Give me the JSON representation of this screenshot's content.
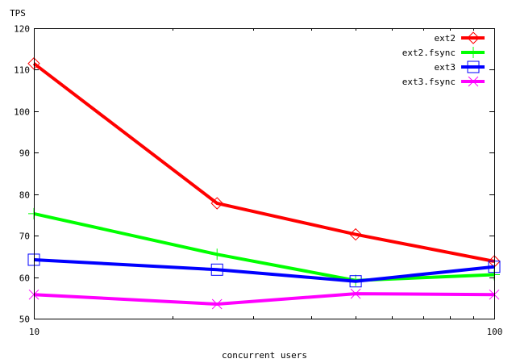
{
  "chart_data": {
    "type": "line",
    "ylabel": "TPS",
    "xlabel": "concurrent users",
    "x_scale": "log",
    "xlim": [
      10,
      100
    ],
    "ylim": [
      50,
      120
    ],
    "x_ticks": [
      {
        "value": 10,
        "label": "10"
      },
      {
        "value": 100,
        "label": "100"
      }
    ],
    "y_ticks": [
      {
        "value": 50,
        "label": "50"
      },
      {
        "value": 60,
        "label": "60"
      },
      {
        "value": 70,
        "label": "70"
      },
      {
        "value": 80,
        "label": "80"
      },
      {
        "value": 90,
        "label": "90"
      },
      {
        "value": 100,
        "label": "100"
      },
      {
        "value": 110,
        "label": "110"
      },
      {
        "value": 120,
        "label": "120"
      }
    ],
    "x": [
      10,
      25,
      50,
      100
    ],
    "legend_position": "top-right",
    "series": [
      {
        "name": "ext2",
        "color": "#ff0000",
        "marker": "diamond",
        "values": [
          111.5,
          77.8,
          70.3,
          63.8
        ]
      },
      {
        "name": "ext2.fsync",
        "color": "#00ff00",
        "marker": "plus",
        "values": [
          75.3,
          65.5,
          59.2,
          60.6
        ]
      },
      {
        "name": "ext3",
        "color": "#0000ff",
        "marker": "square",
        "values": [
          64.2,
          61.8,
          59.0,
          62.5
        ]
      },
      {
        "name": "ext3.fsync",
        "color": "#ff00ff",
        "marker": "x",
        "values": [
          55.8,
          53.5,
          56.0,
          55.8
        ]
      }
    ]
  }
}
